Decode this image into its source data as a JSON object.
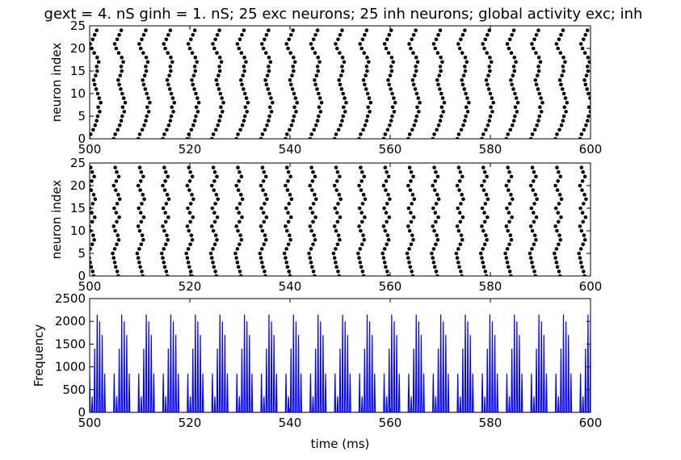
{
  "figure": {
    "title": "gext = 4. nS ginh = 1. nS; 25 exc neurons; 25 inh neurons; global activity exc; inh"
  },
  "chart_data": [
    {
      "type": "scatter",
      "xlabel": "",
      "ylabel": "neuron index",
      "xlim": [
        500,
        600
      ],
      "ylim": [
        0,
        25
      ],
      "xticks": [
        500,
        520,
        540,
        560,
        580,
        600
      ],
      "yticks": [
        0,
        5,
        10,
        15,
        20,
        25
      ],
      "marker_color": "#000000",
      "burst_period_ms": 4.9,
      "burst_start_ms": 500.0,
      "spike_times_note_free": true,
      "wave_offsets_ms": [
        0.3,
        0.6,
        1.1,
        1.5,
        1.8,
        2.0,
        2.4,
        2.1,
        2.6,
        2.3,
        2.0,
        1.7,
        1.4,
        1.2,
        1.6,
        1.9,
        1.8,
        2.2,
        1.9,
        1.3,
        0.8,
        0.5,
        1.0,
        1.4,
        1.8
      ]
    },
    {
      "type": "scatter",
      "xlabel": "",
      "ylabel": "neuron index",
      "xlim": [
        500,
        600
      ],
      "ylim": [
        0,
        25
      ],
      "xticks": [
        500,
        520,
        540,
        560,
        580,
        600
      ],
      "yticks": [
        0,
        5,
        10,
        15,
        20,
        25
      ],
      "marker_color": "#000000",
      "burst_period_ms": 4.9,
      "burst_start_ms": 500.0,
      "wave_offsets_ms": [
        1.2,
        1.0,
        0.7,
        0.5,
        0.3,
        0.1,
        0.5,
        0.9,
        1.3,
        1.1,
        0.6,
        0.3,
        0.9,
        1.4,
        0.8,
        0.4,
        1.0,
        1.5,
        1.2,
        0.7,
        0.3,
        0.8,
        1.3,
        0.9,
        0.6
      ]
    },
    {
      "type": "line",
      "xlabel": "time (ms)",
      "ylabel": "Frequency",
      "xlim": [
        500,
        600
      ],
      "ylim": [
        0,
        2500
      ],
      "xticks": [
        500,
        520,
        540,
        560,
        580,
        600
      ],
      "yticks": [
        0,
        500,
        1000,
        1500,
        2000,
        2500
      ],
      "line_color": "#0000ff",
      "burst_period_ms": 4.9,
      "burst_start_ms": 500.0,
      "burst_peaks": [
        850,
        350,
        1400,
        2150,
        2000,
        1700,
        850
      ]
    }
  ]
}
